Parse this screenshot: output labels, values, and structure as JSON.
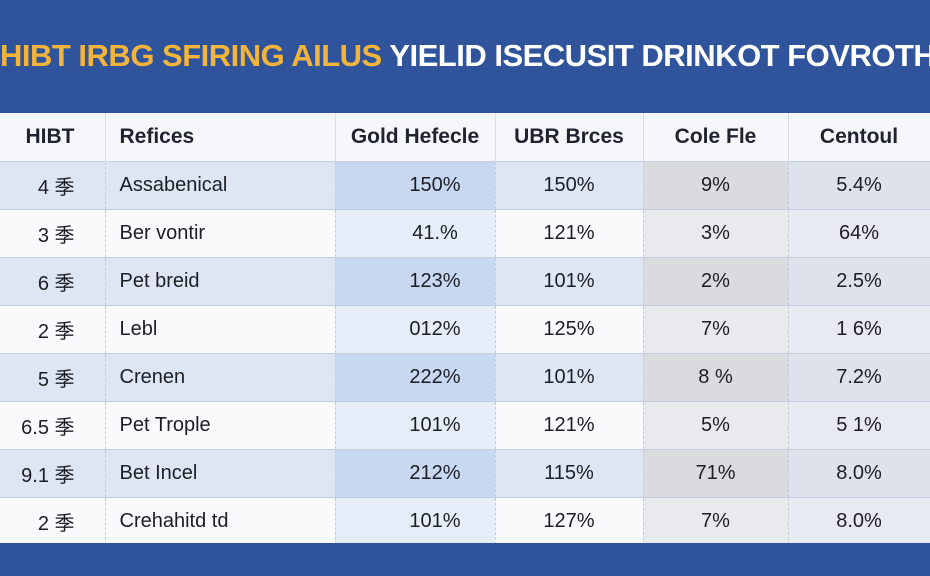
{
  "title_part_a": "HIBT IRBG SFIRING AILUS",
  "title_part_b": "YIELID ISECUSIT DRINKOT FOVROTHS",
  "chart_data": {
    "type": "table",
    "columns": [
      "HIBT",
      "Refices",
      "Gold Hefecle",
      "UBR Brces",
      "Cole Fle",
      "Centoul"
    ],
    "rows": [
      [
        "4 季",
        "Assabenical",
        "150%",
        "150%",
        "9%",
        "5.4%"
      ],
      [
        "3 季",
        "Ber vontir",
        "41.%",
        "121%",
        "3%",
        "64%"
      ],
      [
        "6 季",
        "Pet breid",
        "123%",
        "101%",
        "2%",
        "2.5%"
      ],
      [
        "2 季",
        "Lebl",
        "012%",
        "125%",
        "7%",
        "1 6%"
      ],
      [
        "5 季",
        "Crenen",
        "222%",
        "101%",
        "8 %",
        "7.2%"
      ],
      [
        "6.5 季",
        "Pet Trople",
        "101%",
        "121%",
        "5%",
        "5 1%"
      ],
      [
        "9.1 季",
        "Bet Incel",
        "212%",
        "115%",
        "71%",
        "8.0%"
      ],
      [
        "2 季",
        "Crehahitd td",
        "101%",
        "127%",
        "7%",
        "8.0%"
      ]
    ]
  }
}
